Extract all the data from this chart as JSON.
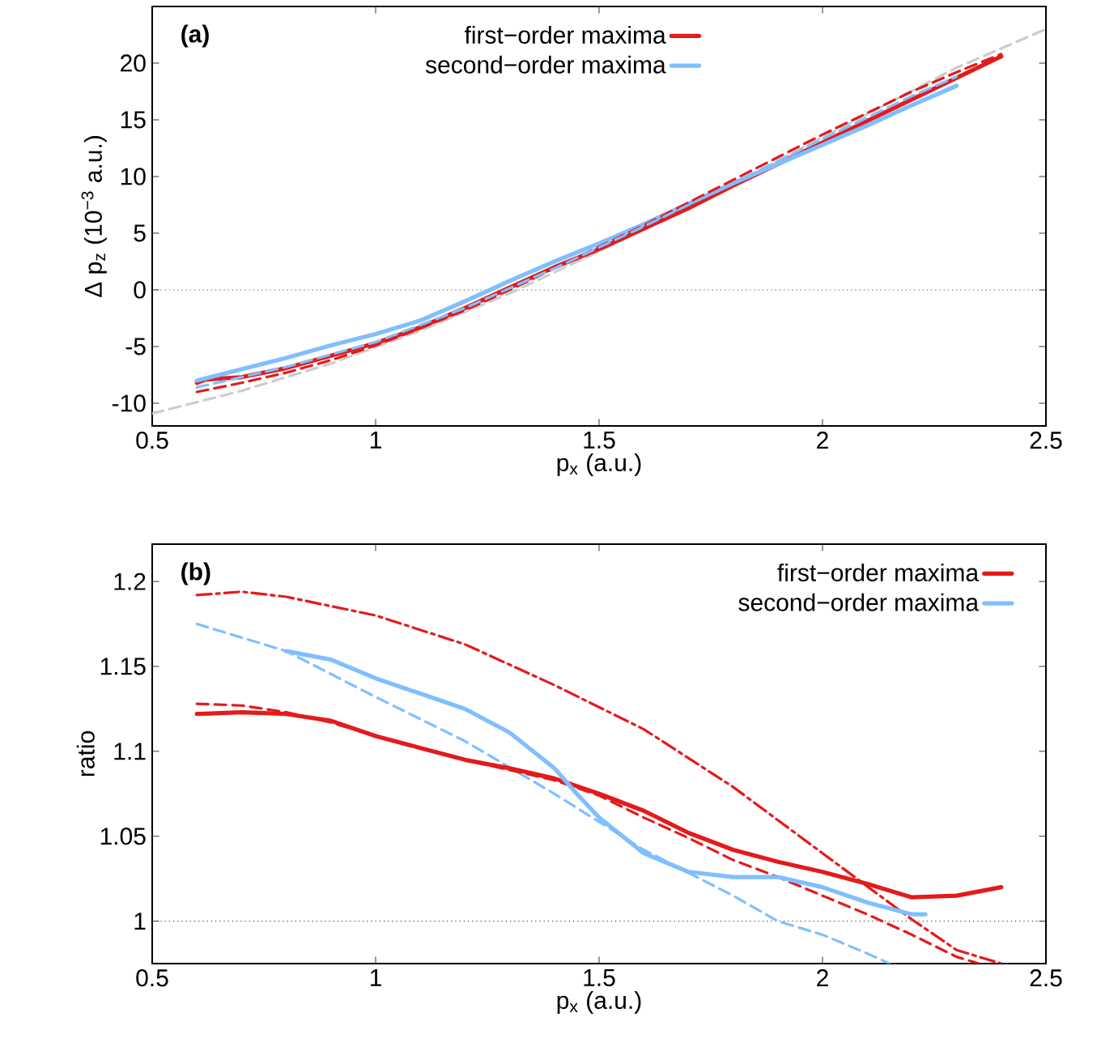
{
  "chart_data": [
    {
      "type": "line",
      "title": "(a)",
      "xlabel": "p$_{x}$ (a.u.)",
      "ylabel": "Δ p$_{z}$ (10$^{−3}$ a.u.)",
      "xlim": [
        0.5,
        2.5
      ],
      "ylim": [
        -12,
        25
      ],
      "xticks": [
        0.5,
        1,
        1.5,
        2,
        2.5
      ],
      "yticks": [
        -10,
        -5,
        0,
        5,
        10,
        15,
        20
      ],
      "legend": "top",
      "grid": false,
      "marker": "none",
      "ref_lines": [
        {
          "axis": "y",
          "value": 0,
          "color": "#333333",
          "line_style": "dotted"
        }
      ],
      "series": [
        {
          "color": "#cccccc",
          "line_style": "dashed",
          "x": [
            0.5,
            0.7,
            0.9,
            1.1,
            1.3,
            1.5,
            1.7,
            1.9,
            2.1,
            2.3,
            2.5
          ],
          "values": [
            -10.9,
            -8.9,
            -6.5,
            -3.6,
            -0.3,
            3.4,
            7.3,
            11.4,
            15.5,
            19.6,
            23.0
          ]
        },
        {
          "name": "first−order maxima",
          "color": "#e41a1c",
          "line_style": "solid",
          "x": [
            0.6,
            0.62,
            0.7,
            0.8,
            0.9,
            1.0,
            1.1,
            1.2,
            1.3,
            1.4,
            1.5,
            1.6,
            1.7,
            1.8,
            1.9,
            2.0,
            2.1,
            2.2,
            2.3,
            2.4
          ],
          "values": [
            -8.2,
            -7.9,
            -7.7,
            -6.9,
            -5.8,
            -4.7,
            -3.3,
            -1.6,
            0.2,
            2.0,
            3.6,
            5.4,
            7.2,
            9.2,
            11.1,
            13.0,
            14.9,
            16.8,
            18.7,
            20.6
          ]
        },
        {
          "name": "second−order maxima",
          "color": "#7fbfff",
          "line_style": "solid",
          "x": [
            0.6,
            0.7,
            0.8,
            0.9,
            1.0,
            1.1,
            1.2,
            1.3,
            1.4,
            1.5,
            1.6,
            1.7,
            1.8,
            1.9,
            2.0,
            2.1,
            2.2,
            2.3
          ],
          "values": [
            -8.0,
            -7.0,
            -6.0,
            -4.9,
            -3.9,
            -2.7,
            -1.0,
            0.8,
            2.5,
            4.1,
            5.8,
            7.6,
            9.4,
            11.1,
            12.8,
            14.5,
            16.3,
            18.0
          ]
        },
        {
          "color": "#e41a1c",
          "line_style": "dashed",
          "x": [
            0.6,
            0.7,
            0.8,
            0.9,
            1.0,
            1.1,
            1.2,
            1.3,
            1.4,
            1.5,
            1.6,
            1.7,
            1.8,
            1.9,
            2.0,
            2.1,
            2.2,
            2.3,
            2.4
          ],
          "values": [
            -9.0,
            -8.2,
            -7.3,
            -6.2,
            -4.9,
            -3.4,
            -1.8,
            0.0,
            1.9,
            3.8,
            5.7,
            7.7,
            9.7,
            11.7,
            13.7,
            15.6,
            17.5,
            19.2,
            20.8
          ]
        },
        {
          "color": "#7fbfff",
          "line_style": "dashed",
          "x": [
            0.6,
            0.8,
            1.0,
            1.2,
            1.4,
            1.6,
            1.8,
            2.0,
            2.2,
            2.3
          ],
          "values": [
            -8.6,
            -6.8,
            -4.6,
            -1.6,
            1.9,
            5.6,
            9.4,
            13.3,
            17.1,
            18.8
          ]
        }
      ]
    },
    {
      "type": "line",
      "title": "(b)",
      "xlabel": "p$_{x}$ (a.u.)",
      "ylabel": "ratio",
      "xlim": [
        0.5,
        2.5
      ],
      "ylim": [
        0.975,
        1.222
      ],
      "xticks": [
        0.5,
        1,
        1.5,
        2,
        2.5
      ],
      "yticks": [
        1,
        1.05,
        1.1,
        1.15,
        1.2
      ],
      "legend": "top right",
      "grid": false,
      "marker": "none",
      "ref_lines": [
        {
          "axis": "y",
          "value": 1,
          "color": "#333333",
          "line_style": "dotted"
        }
      ],
      "series": [
        {
          "color": "#e41a1c",
          "line_style": "dashdot",
          "x": [
            0.6,
            0.7,
            0.8,
            1.0,
            1.2,
            1.4,
            1.6,
            1.8,
            2.0,
            2.2,
            2.3,
            2.4
          ],
          "values": [
            1.192,
            1.194,
            1.191,
            1.18,
            1.163,
            1.139,
            1.113,
            1.079,
            1.04,
            1.001,
            0.983,
            0.975
          ]
        },
        {
          "color": "#7fbfff",
          "line_style": "dashed",
          "x": [
            0.6,
            0.8,
            1.0,
            1.2,
            1.4,
            1.6,
            1.8,
            1.9,
            2.0,
            2.1,
            2.15
          ],
          "values": [
            1.175,
            1.159,
            1.132,
            1.106,
            1.075,
            1.042,
            1.015,
            1.0,
            0.992,
            0.981,
            0.975
          ]
        },
        {
          "color": "#e41a1c",
          "line_style": "dashed",
          "x": [
            0.6,
            0.7,
            0.8,
            0.9,
            1.0,
            1.2,
            1.4,
            1.5,
            1.6,
            1.7,
            1.8,
            1.9,
            2.0,
            2.1,
            2.2,
            2.3,
            2.35
          ],
          "values": [
            1.128,
            1.127,
            1.123,
            1.117,
            1.109,
            1.095,
            1.083,
            1.074,
            1.061,
            1.049,
            1.036,
            1.026,
            1.015,
            1.004,
            0.992,
            0.979,
            0.975
          ]
        },
        {
          "name": "first−order maxima",
          "color": "#e41a1c",
          "line_style": "solid",
          "x": [
            0.6,
            0.7,
            0.8,
            0.9,
            1.0,
            1.1,
            1.2,
            1.3,
            1.4,
            1.5,
            1.6,
            1.7,
            1.8,
            1.9,
            2.0,
            2.1,
            2.2,
            2.3,
            2.4
          ],
          "values": [
            1.122,
            1.123,
            1.122,
            1.118,
            1.109,
            1.102,
            1.095,
            1.09,
            1.084,
            1.075,
            1.065,
            1.052,
            1.042,
            1.035,
            1.029,
            1.022,
            1.014,
            1.015,
            1.02
          ]
        },
        {
          "name": "second−order maxima",
          "color": "#7fbfff",
          "line_style": "solid",
          "x": [
            0.8,
            0.9,
            1.0,
            1.1,
            1.2,
            1.3,
            1.4,
            1.45,
            1.5,
            1.6,
            1.7,
            1.8,
            1.9,
            2.0,
            2.1,
            2.2,
            2.23
          ],
          "values": [
            1.159,
            1.154,
            1.143,
            1.134,
            1.125,
            1.111,
            1.09,
            1.075,
            1.061,
            1.04,
            1.029,
            1.026,
            1.026,
            1.02,
            1.011,
            1.004,
            1.004
          ]
        }
      ]
    }
  ]
}
